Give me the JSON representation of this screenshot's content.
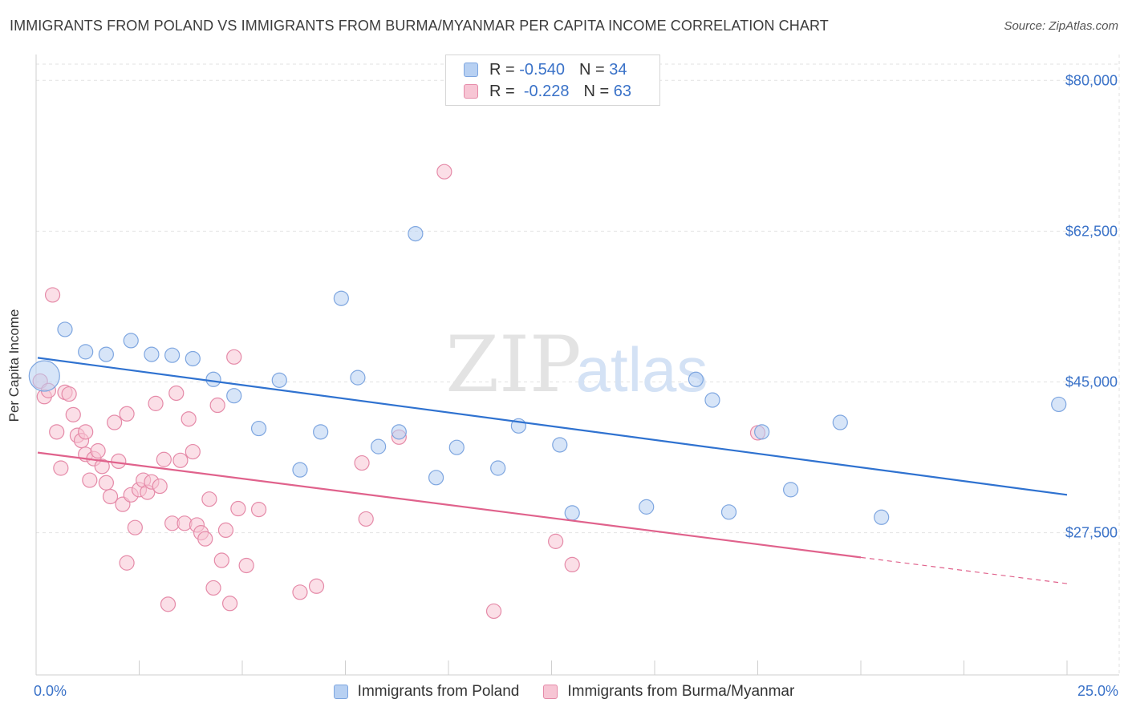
{
  "header": {
    "title": "IMMIGRANTS FROM POLAND VS IMMIGRANTS FROM BURMA/MYANMAR PER CAPITA INCOME CORRELATION CHART",
    "source": "Source: ZipAtlas.com"
  },
  "watermark": {
    "part1": "ZIP",
    "part2": "atlas"
  },
  "legend": {
    "poland": {
      "r_label": "R =",
      "r_value": "-0.540",
      "n_label": "N =",
      "n_value": "34"
    },
    "burma": {
      "r_label": "R =",
      "r_value": "-0.228",
      "n_label": "N =",
      "n_value": "63"
    }
  },
  "colors": {
    "poland_fill": "#b7d0f2",
    "poland_stroke": "#7ea6e0",
    "poland_line": "#2f72d0",
    "burma_fill": "#f7c5d4",
    "burma_stroke": "#e58aa8",
    "burma_line": "#e0628c",
    "axis_label": "#3a72c8",
    "grid": "#e2e2e2"
  },
  "chart_data": {
    "type": "scatter",
    "title": "IMMIGRANTS FROM POLAND VS IMMIGRANTS FROM BURMA/MYANMAR PER CAPITA INCOME CORRELATION CHART",
    "xlabel": "",
    "ylabel": "Per Capita Income",
    "xlim": [
      0,
      25
    ],
    "ylim": [
      11000,
      83000
    ],
    "x_tick_labels": [
      "0.0%",
      "25.0%"
    ],
    "y_ticks": [
      27500,
      45000,
      62500,
      80000
    ],
    "y_tick_labels": [
      "$27,500",
      "$45,000",
      "$62,500",
      "$80,000"
    ],
    "grid": true,
    "legend_position": "top-center",
    "series": [
      {
        "name": "Immigrants from Poland",
        "points": [
          [
            0.2,
            45700,
            1
          ],
          [
            0.7,
            51100,
            0
          ],
          [
            1.2,
            48500,
            0
          ],
          [
            1.7,
            48200,
            0
          ],
          [
            2.3,
            49800,
            0
          ],
          [
            2.8,
            48200,
            0
          ],
          [
            3.3,
            48100,
            0
          ],
          [
            3.8,
            47700,
            0
          ],
          [
            4.3,
            45300,
            0
          ],
          [
            4.8,
            43400,
            0
          ],
          [
            5.4,
            39600,
            0
          ],
          [
            5.9,
            45200,
            0
          ],
          [
            6.4,
            34800,
            0
          ],
          [
            6.9,
            39200,
            0
          ],
          [
            7.4,
            54700,
            0
          ],
          [
            7.8,
            45500,
            0
          ],
          [
            8.3,
            37500,
            0
          ],
          [
            8.8,
            39200,
            0
          ],
          [
            9.2,
            62200,
            0
          ],
          [
            9.7,
            33900,
            0
          ],
          [
            10.2,
            37400,
            0
          ],
          [
            11.2,
            35000,
            0
          ],
          [
            11.7,
            39900,
            0
          ],
          [
            12.7,
            37700,
            0
          ],
          [
            13.0,
            29800,
            0
          ],
          [
            14.8,
            30500,
            0
          ],
          [
            16.0,
            45300,
            0
          ],
          [
            16.4,
            42900,
            0
          ],
          [
            16.8,
            29900,
            0
          ],
          [
            17.6,
            39200,
            0
          ],
          [
            18.3,
            32500,
            0
          ],
          [
            19.5,
            40300,
            0
          ],
          [
            20.5,
            29300,
            0
          ],
          [
            24.8,
            42400,
            0
          ]
        ]
      },
      {
        "name": "Immigrants from Burma/Myanmar",
        "points": [
          [
            0.1,
            45100,
            0
          ],
          [
            0.2,
            43300,
            0
          ],
          [
            0.3,
            44000,
            0
          ],
          [
            0.4,
            55100,
            0
          ],
          [
            0.5,
            39200,
            0
          ],
          [
            0.6,
            35000,
            0
          ],
          [
            0.7,
            43800,
            0
          ],
          [
            0.8,
            43600,
            0
          ],
          [
            0.9,
            41200,
            0
          ],
          [
            1.0,
            38800,
            0
          ],
          [
            1.1,
            38200,
            0
          ],
          [
            1.2,
            36600,
            0
          ],
          [
            1.2,
            39200,
            0
          ],
          [
            1.3,
            33600,
            0
          ],
          [
            1.4,
            36100,
            0
          ],
          [
            1.5,
            37000,
            0
          ],
          [
            1.6,
            35200,
            0
          ],
          [
            1.7,
            33300,
            0
          ],
          [
            1.8,
            31700,
            0
          ],
          [
            1.9,
            40300,
            0
          ],
          [
            2.0,
            35800,
            0
          ],
          [
            2.1,
            30800,
            0
          ],
          [
            2.2,
            41300,
            0
          ],
          [
            2.2,
            24000,
            0
          ],
          [
            2.3,
            31900,
            0
          ],
          [
            2.4,
            28100,
            0
          ],
          [
            2.5,
            32500,
            0
          ],
          [
            2.6,
            33600,
            0
          ],
          [
            2.7,
            32200,
            0
          ],
          [
            2.8,
            33400,
            0
          ],
          [
            2.9,
            42500,
            0
          ],
          [
            3.0,
            32900,
            0
          ],
          [
            3.1,
            36000,
            0
          ],
          [
            3.2,
            19200,
            0
          ],
          [
            3.3,
            28600,
            0
          ],
          [
            3.4,
            43700,
            0
          ],
          [
            3.5,
            35900,
            0
          ],
          [
            3.6,
            28600,
            0
          ],
          [
            3.7,
            40700,
            0
          ],
          [
            3.8,
            36900,
            0
          ],
          [
            3.9,
            28400,
            0
          ],
          [
            4.0,
            27500,
            0
          ],
          [
            4.1,
            26800,
            0
          ],
          [
            4.2,
            31400,
            0
          ],
          [
            4.3,
            21100,
            0
          ],
          [
            4.4,
            42300,
            0
          ],
          [
            4.5,
            24300,
            0
          ],
          [
            4.6,
            27800,
            0
          ],
          [
            4.7,
            19300,
            0
          ],
          [
            4.8,
            47900,
            0
          ],
          [
            4.9,
            30300,
            0
          ],
          [
            5.1,
            23700,
            0
          ],
          [
            5.4,
            30200,
            0
          ],
          [
            6.4,
            20600,
            0
          ],
          [
            6.8,
            21300,
            0
          ],
          [
            7.9,
            35600,
            0
          ],
          [
            8.0,
            29100,
            0
          ],
          [
            8.8,
            38600,
            0
          ],
          [
            9.9,
            69400,
            0
          ],
          [
            11.1,
            18400,
            0
          ],
          [
            12.6,
            26500,
            0
          ],
          [
            13.0,
            23800,
            0
          ],
          [
            17.5,
            39100,
            0
          ]
        ]
      }
    ],
    "trend_lines": [
      {
        "series": "Immigrants from Poland",
        "from": [
          0,
          47800
        ],
        "to": [
          25,
          31900
        ],
        "dashed_from": null
      },
      {
        "series": "Immigrants from Burma/Myanmar",
        "from": [
          0,
          36800
        ],
        "to": [
          25,
          21600
        ],
        "dashed_from": 20
      }
    ]
  }
}
